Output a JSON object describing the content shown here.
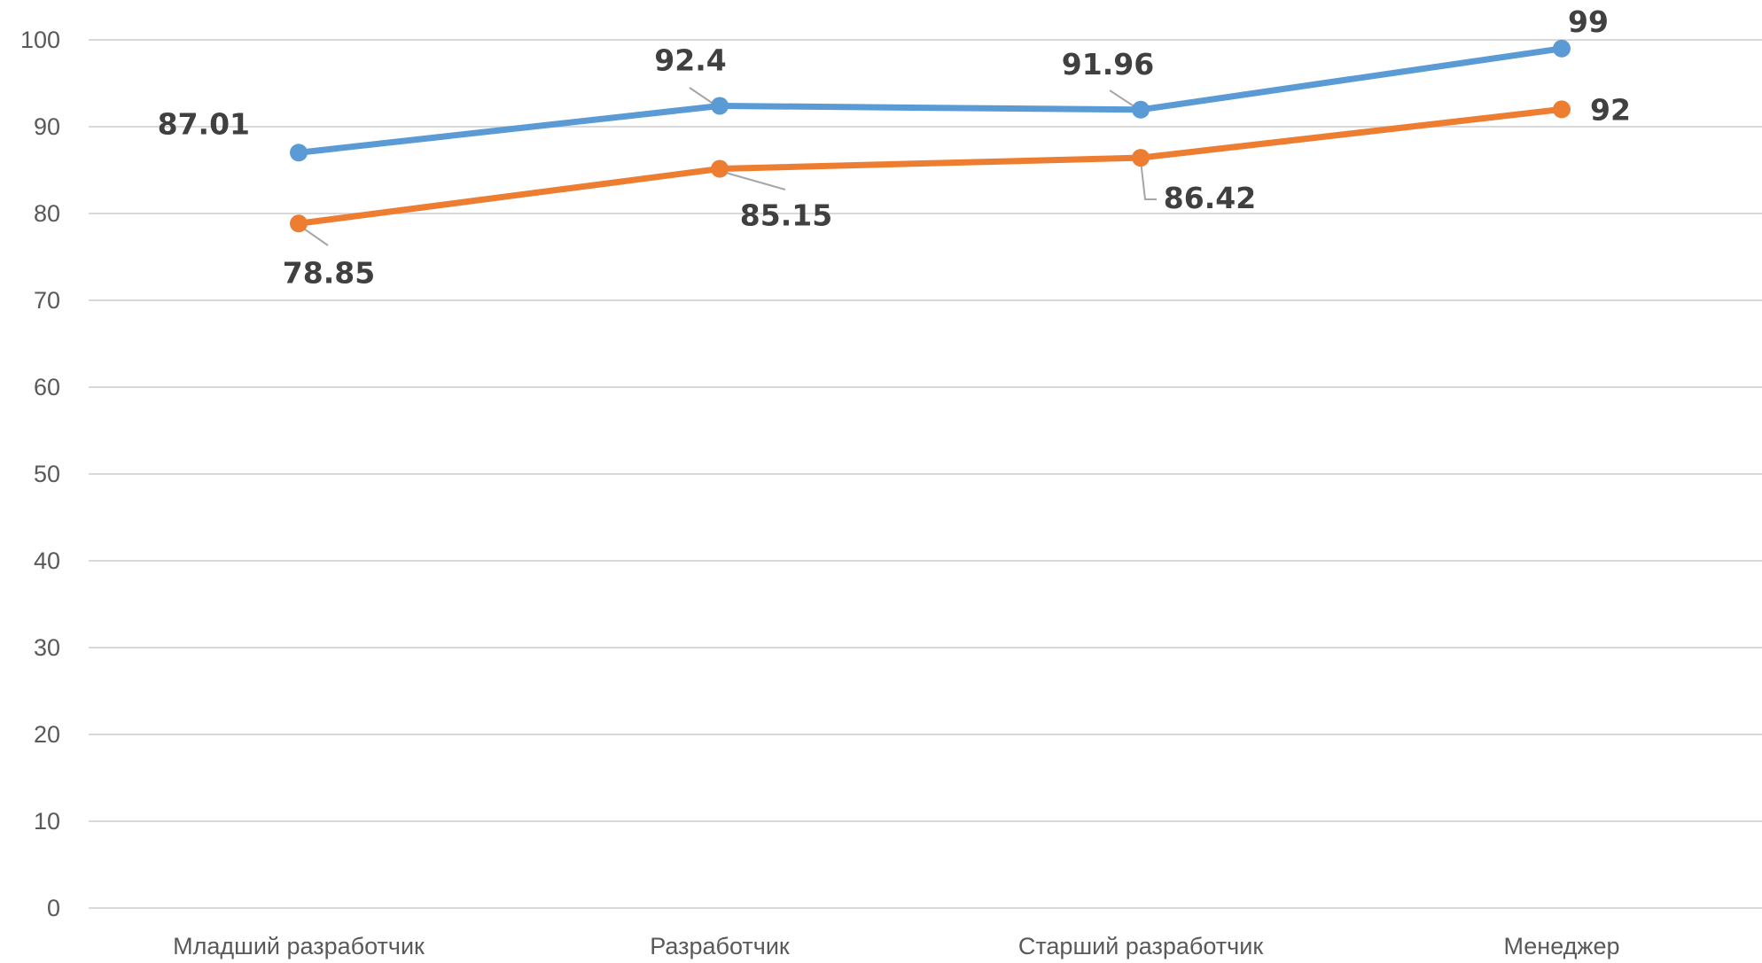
{
  "chart_data": {
    "type": "line",
    "categories": [
      "Младший разработчик",
      "Разработчик",
      "Старший разработчик",
      "Менеджер"
    ],
    "series": [
      {
        "color": "#5b9bd5",
        "values": [
          87.01,
          92.4,
          91.96,
          99
        ],
        "labels": [
          "87.01",
          "92.4",
          "91.96",
          "99"
        ]
      },
      {
        "color": "#ed7d31",
        "values": [
          78.85,
          85.15,
          86.42,
          92
        ],
        "labels": [
          "78.85",
          "85.15",
          "86.42",
          "92"
        ]
      }
    ],
    "yticks": [
      "0",
      "10",
      "20",
      "30",
      "40",
      "50",
      "60",
      "70",
      "80",
      "90",
      "100"
    ],
    "ylim": [
      0,
      100
    ],
    "grid": true,
    "legend": "none"
  }
}
